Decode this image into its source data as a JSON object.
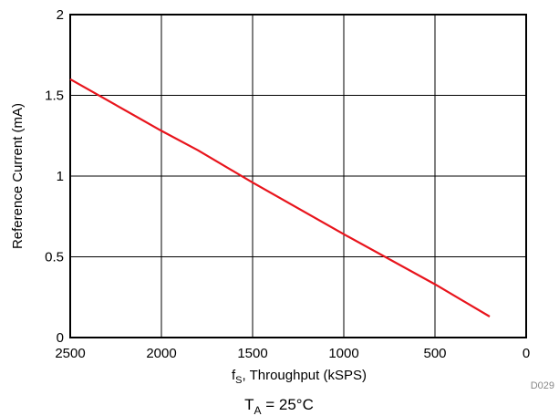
{
  "chart_data": {
    "type": "line",
    "x_reversed": true,
    "xlim": [
      2500,
      0
    ],
    "ylim": [
      0,
      2
    ],
    "x_ticks": [
      2500,
      2000,
      1500,
      1000,
      500,
      0
    ],
    "y_ticks": [
      0,
      0.5,
      1,
      1.5,
      2
    ],
    "x_tick_labels": [
      "2500",
      "2000",
      "1500",
      "1000",
      "500",
      "0"
    ],
    "y_tick_labels": [
      "0",
      "0.5",
      "1",
      "1.5",
      "2"
    ],
    "xlabel_main": "f",
    "xlabel_sub": "S",
    "xlabel_rest": ", Throughput (kSPS)",
    "ylabel": "Reference Current (mA)",
    "grid": true,
    "series": [
      {
        "color": "#e8141c",
        "x": [
          2500,
          2000,
          1800,
          1500,
          1000,
          500,
          200
        ],
        "y": [
          1.6,
          1.28,
          1.16,
          0.96,
          0.64,
          0.33,
          0.13
        ]
      }
    ],
    "figure_code": "D029",
    "condition_main": "T",
    "condition_sub": "A",
    "condition_rest": " = 25°C"
  }
}
